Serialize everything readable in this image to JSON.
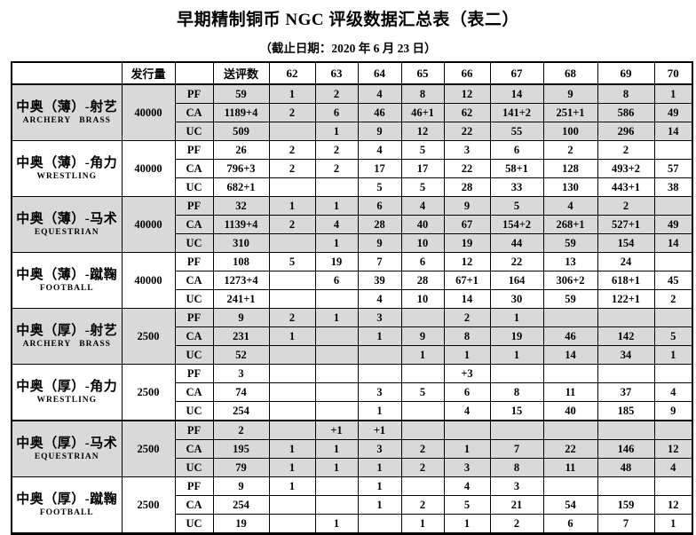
{
  "title": "早期精制铜币 NGC 评级数据汇总表（表二）",
  "subtitle": "（截止日期：2020 年 6 月 23 日）",
  "table": {
    "header": [
      "",
      "发行量",
      "",
      "送评数",
      "62",
      "63",
      "64",
      "65",
      "66",
      "67",
      "68",
      "69",
      "70"
    ],
    "shading_color": "#d9d9d9",
    "groups": [
      {
        "name_cn": "中奥（薄）-射艺",
        "name_en": "ARCHERY BRASS",
        "mintage": "40000",
        "shaded": true,
        "rows": [
          {
            "type": "PF",
            "submitted": "59",
            "grades": [
              "1",
              "2",
              "4",
              "8",
              "12",
              "14",
              "9",
              "8",
              "1"
            ]
          },
          {
            "type": "CA",
            "submitted": "1189+4",
            "grades": [
              "2",
              "6",
              "46",
              "46+1",
              "62",
              "141+2",
              "251+1",
              "586",
              "49"
            ]
          },
          {
            "type": "UC",
            "submitted": "509",
            "grades": [
              "",
              "1",
              "9",
              "12",
              "22",
              "55",
              "100",
              "296",
              "14"
            ]
          }
        ]
      },
      {
        "name_cn": "中奥（薄）-角力",
        "name_en": "WRESTLING",
        "mintage": "40000",
        "shaded": false,
        "rows": [
          {
            "type": "PF",
            "submitted": "26",
            "grades": [
              "2",
              "2",
              "4",
              "5",
              "3",
              "6",
              "2",
              "2",
              ""
            ]
          },
          {
            "type": "CA",
            "submitted": "796+3",
            "grades": [
              "2",
              "2",
              "17",
              "17",
              "22",
              "58+1",
              "128",
              "493+2",
              "57"
            ]
          },
          {
            "type": "UC",
            "submitted": "682+1",
            "grades": [
              "",
              "",
              "5",
              "5",
              "28",
              "33",
              "130",
              "443+1",
              "38"
            ]
          }
        ]
      },
      {
        "name_cn": "中奥（薄）-马术",
        "name_en": "EQUESTRIAN",
        "mintage": "40000",
        "shaded": true,
        "rows": [
          {
            "type": "PF",
            "submitted": "32",
            "grades": [
              "1",
              "1",
              "6",
              "4",
              "9",
              "5",
              "4",
              "2",
              ""
            ]
          },
          {
            "type": "CA",
            "submitted": "1139+4",
            "grades": [
              "2",
              "4",
              "28",
              "40",
              "67",
              "154+2",
              "268+1",
              "527+1",
              "49"
            ]
          },
          {
            "type": "UC",
            "submitted": "310",
            "grades": [
              "",
              "1",
              "9",
              "10",
              "19",
              "44",
              "59",
              "154",
              "14"
            ]
          }
        ]
      },
      {
        "name_cn": "中奥（薄）-蹴鞠",
        "name_en": "FOOTBALL",
        "mintage": "40000",
        "shaded": false,
        "rows": [
          {
            "type": "PF",
            "submitted": "108",
            "grades": [
              "5",
              "19",
              "7",
              "6",
              "12",
              "22",
              "13",
              "24",
              ""
            ]
          },
          {
            "type": "CA",
            "submitted": "1273+4",
            "grades": [
              "",
              "6",
              "39",
              "28",
              "67+1",
              "164",
              "306+2",
              "618+1",
              "45"
            ]
          },
          {
            "type": "UC",
            "submitted": "241+1",
            "grades": [
              "",
              "",
              "4",
              "10",
              "14",
              "30",
              "59",
              "122+1",
              "2"
            ]
          }
        ]
      },
      {
        "name_cn": "中奥（厚）-射艺",
        "name_en": "ARCHERY BRASS",
        "mintage": "2500",
        "shaded": true,
        "rows": [
          {
            "type": "PF",
            "submitted": "9",
            "grades": [
              "2",
              "1",
              "3",
              "",
              "2",
              "1",
              "",
              "",
              ""
            ]
          },
          {
            "type": "CA",
            "submitted": "231",
            "grades": [
              "1",
              "",
              "1",
              "9",
              "8",
              "19",
              "46",
              "142",
              "5"
            ]
          },
          {
            "type": "UC",
            "submitted": "52",
            "grades": [
              "",
              "",
              "",
              "1",
              "1",
              "1",
              "14",
              "34",
              "1"
            ]
          }
        ]
      },
      {
        "name_cn": "中奥（厚）-角力",
        "name_en": "WRESTLING",
        "mintage": "2500",
        "shaded": false,
        "rows": [
          {
            "type": "PF",
            "submitted": "3",
            "grades": [
              "",
              "",
              "",
              "",
              "+3",
              "",
              "",
              "",
              ""
            ]
          },
          {
            "type": "CA",
            "submitted": "74",
            "grades": [
              "",
              "",
              "3",
              "5",
              "6",
              "8",
              "11",
              "37",
              "4"
            ]
          },
          {
            "type": "UC",
            "submitted": "254",
            "grades": [
              "",
              "",
              "1",
              "",
              "4",
              "15",
              "40",
              "185",
              "9"
            ]
          }
        ]
      },
      {
        "name_cn": "中奥（厚）-马术",
        "name_en": "EQUESTRIAN",
        "mintage": "2500",
        "shaded": true,
        "page_break": true,
        "rows": [
          {
            "type": "PF",
            "submitted": "2",
            "grades": [
              "",
              "+1",
              "+1",
              "",
              "",
              "",
              "",
              "",
              ""
            ]
          },
          {
            "type": "CA",
            "submitted": "195",
            "grades": [
              "1",
              "1",
              "3",
              "2",
              "1",
              "7",
              "22",
              "146",
              "12"
            ]
          },
          {
            "type": "UC",
            "submitted": "79",
            "grades": [
              "1",
              "1",
              "1",
              "2",
              "3",
              "8",
              "11",
              "48",
              "4"
            ]
          }
        ]
      },
      {
        "name_cn": "中奥（厚）-蹴鞠",
        "name_en": "FOOTBALL",
        "mintage": "2500",
        "shaded": false,
        "rows": [
          {
            "type": "PF",
            "submitted": "9",
            "grades": [
              "1",
              "",
              "1",
              "",
              "4",
              "3",
              "",
              "",
              ""
            ]
          },
          {
            "type": "CA",
            "submitted": "254",
            "grades": [
              "",
              "",
              "1",
              "2",
              "5",
              "21",
              "54",
              "159",
              "12"
            ]
          },
          {
            "type": "UC",
            "submitted": "19",
            "grades": [
              "",
              "1",
              "",
              "1",
              "1",
              "2",
              "6",
              "7",
              "1"
            ]
          }
        ]
      }
    ]
  }
}
